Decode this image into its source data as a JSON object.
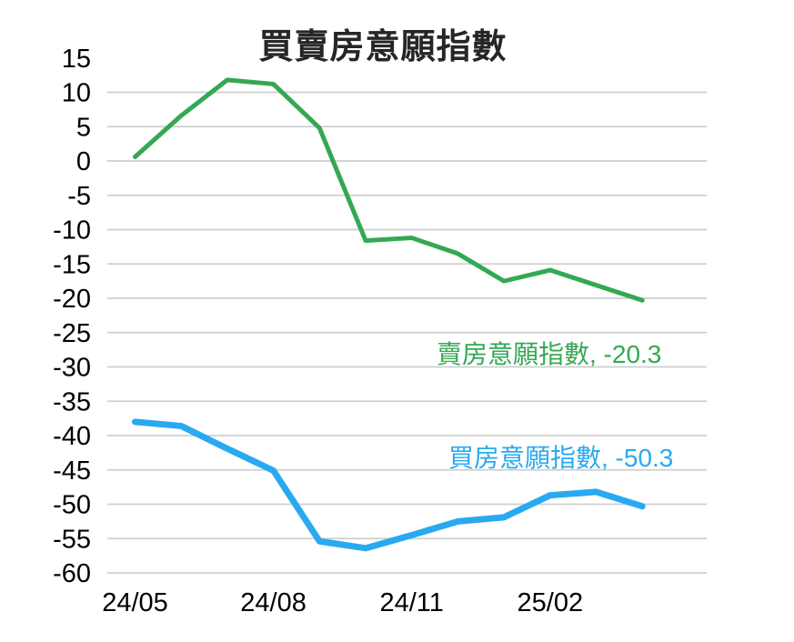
{
  "chart_data": {
    "type": "line",
    "title": "買賣房意願指數",
    "x": [
      "24/05",
      "24/06",
      "24/07",
      "24/08",
      "24/09",
      "24/10",
      "24/11",
      "24/12",
      "25/01",
      "25/02",
      "25/03",
      "25/04"
    ],
    "x_tick_labels": [
      "24/05",
      "24/08",
      "24/11",
      "25/02"
    ],
    "x_tick_indices": [
      0,
      3,
      6,
      9
    ],
    "yticks": [
      15,
      10,
      5,
      0,
      -5,
      -10,
      -15,
      -20,
      -25,
      -30,
      -35,
      -40,
      -45,
      -50,
      -55,
      -60
    ],
    "ylim": [
      -60,
      15
    ],
    "grid": true,
    "gridline_value_range": [
      10,
      -60
    ],
    "legend_position": "none (inline end-of-line data labels)",
    "series": [
      {
        "name": "賣房意願指數",
        "label": "賣房意願指數, -20.3",
        "last_value": -20.3,
        "color": "#34a853",
        "values": [
          0.6,
          6.6,
          11.8,
          11.2,
          4.8,
          -11.6,
          -11.2,
          -13.5,
          -17.5,
          -15.9,
          -18.1,
          -20.3
        ]
      },
      {
        "name": "買房意願指數",
        "label": "買房意願指數, -50.3",
        "last_value": -50.3,
        "color": "#29a9f0",
        "values": [
          -38.0,
          -38.6,
          -41.9,
          -45.1,
          -55.4,
          -56.4,
          -54.5,
          -52.5,
          -51.9,
          -48.7,
          -48.2,
          -50.3
        ]
      }
    ]
  }
}
